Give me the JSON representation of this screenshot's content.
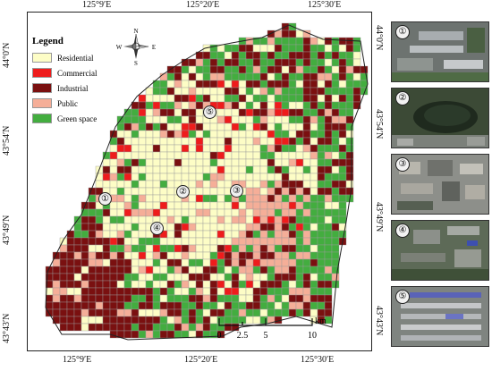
{
  "map": {
    "legend": {
      "title": "Legend",
      "items": [
        {
          "label": "Residential",
          "color": "#fdfdc6"
        },
        {
          "label": "Commercial",
          "color": "#ee1c1c"
        },
        {
          "label": "Industrial",
          "color": "#7a1010"
        },
        {
          "label": "Public",
          "color": "#f5ae98"
        },
        {
          "label": "Green space",
          "color": "#43ad3f"
        }
      ]
    },
    "longitude_ticks": [
      "125°9′E",
      "125°20′E",
      "125°30′E"
    ],
    "latitude_ticks": [
      "44°0′N",
      "43°54′N",
      "43°49′N",
      "43°43′N"
    ],
    "north_arrow": {
      "n": "N",
      "e": "E",
      "s": "S",
      "w": "W"
    },
    "scalebar": {
      "labels": [
        "0",
        "2.5",
        "5",
        "10"
      ],
      "unit": "km"
    },
    "site_markers": [
      "①",
      "②",
      "③",
      "④",
      "⑤"
    ],
    "background_color": "#ffffff",
    "grid_line_color": "#9a9a9a"
  },
  "thumbnails": [
    {
      "number": "①"
    },
    {
      "number": "②"
    },
    {
      "number": "③"
    },
    {
      "number": "④"
    },
    {
      "number": "⑤"
    }
  ]
}
